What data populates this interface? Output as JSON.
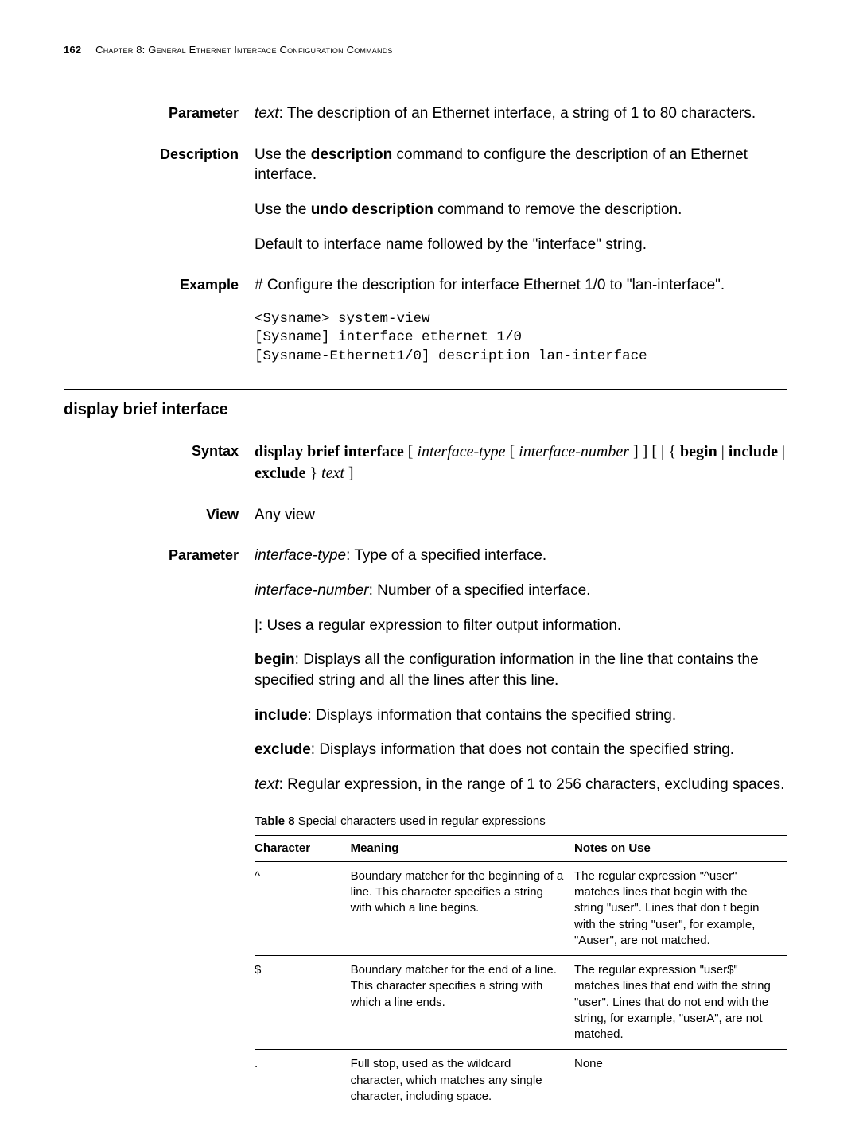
{
  "header": {
    "page_number": "162",
    "chapter_prefix": "C",
    "chapter_rest_sc": "hapter",
    "chapter_num": " 8: G",
    "chapter_rest2_sc": "eneral",
    "chapter_mid": " E",
    "chapter_rest3_sc": "thernet",
    "chapter_mid2": " I",
    "chapter_rest4_sc": "nterface",
    "chapter_mid3": " C",
    "chapter_rest5_sc": "onfiguration",
    "chapter_mid4": " C",
    "chapter_rest6_sc": "ommands"
  },
  "labels": {
    "parameter": "Parameter",
    "description": "Description",
    "example": "Example",
    "syntax": "Syntax",
    "view": "View"
  },
  "parameter1": {
    "text_label": "text",
    "text_desc": ": The description of an Ethernet interface, a string of 1 to 80 characters."
  },
  "description": {
    "p1a": "Use the ",
    "p1b": "description",
    "p1c": " command to configure the description of an Ethernet interface.",
    "p2a": "Use the ",
    "p2b": "undo description",
    "p2c": " command to remove the description.",
    "p3": "Default to interface name followed by the \"interface\" string."
  },
  "example": {
    "intro": "# Configure the description for interface Ethernet 1/0 to \"lan-interface\".",
    "code": "<Sysname> system-view\n[Sysname] interface ethernet 1/0\n[Sysname-Ethernet1/0] description lan-interface"
  },
  "section2_title": "display brief interface",
  "syntax": {
    "cmd": "display brief interface",
    "sp1": " [ ",
    "it1": "interface-type",
    "sp2": " [ ",
    "it2": "interface-number",
    "sp3": " ] ] [ ",
    "pipe": "|",
    "sp4": " { ",
    "k1": "begin",
    "bar1": " | ",
    "k2": "include",
    "bar2": " | ",
    "k3": "exclude",
    "sp5": " } ",
    "it3": "text",
    "sp6": " ]"
  },
  "view": {
    "text": "Any view"
  },
  "parameter2": {
    "p1a": "interface-type",
    "p1b": ": Type of a specified interface.",
    "p2a": "interface-number",
    "p2b": ": Number of a specified interface.",
    "p3": "|: Uses a regular expression to filter output information.",
    "p4a": "begin",
    "p4b": ": Displays all the configuration information in the line that contains the specified string and all the lines after this line.",
    "p5a": "include",
    "p5b": ": Displays information that contains the specified string.",
    "p6a": "exclude",
    "p6b": ": Displays information that does not contain the specified string.",
    "p7a": "text",
    "p7b": ": Regular expression, in the range of 1 to 256 characters, excluding spaces."
  },
  "table": {
    "caption_label": "Table 8",
    "caption_text": "   Special characters used in regular expressions",
    "headers": {
      "c1": "Character",
      "c2": "Meaning",
      "c3": "Notes on Use"
    },
    "rows": [
      {
        "c1": "^",
        "c2": "Boundary matcher for the beginning of a line. This character specifies a string with which a line begins.",
        "c3": "The regular expression \"^user\" matches lines that begin with the string \"user\". Lines that don t begin with the string \"user\", for example, \"Auser\", are not matched."
      },
      {
        "c1": "$",
        "c2": "Boundary matcher for the end of a line. This character specifies a string with which a line ends.",
        "c3": "The regular expression \"user$\" matches lines that end with the string \"user\". Lines that do not end with the string, for example, \"userA\", are not matched."
      },
      {
        "c1": ".",
        "c2": "Full stop, used as the wildcard character, which matches any single character, including space.",
        "c3": "None"
      }
    ]
  }
}
